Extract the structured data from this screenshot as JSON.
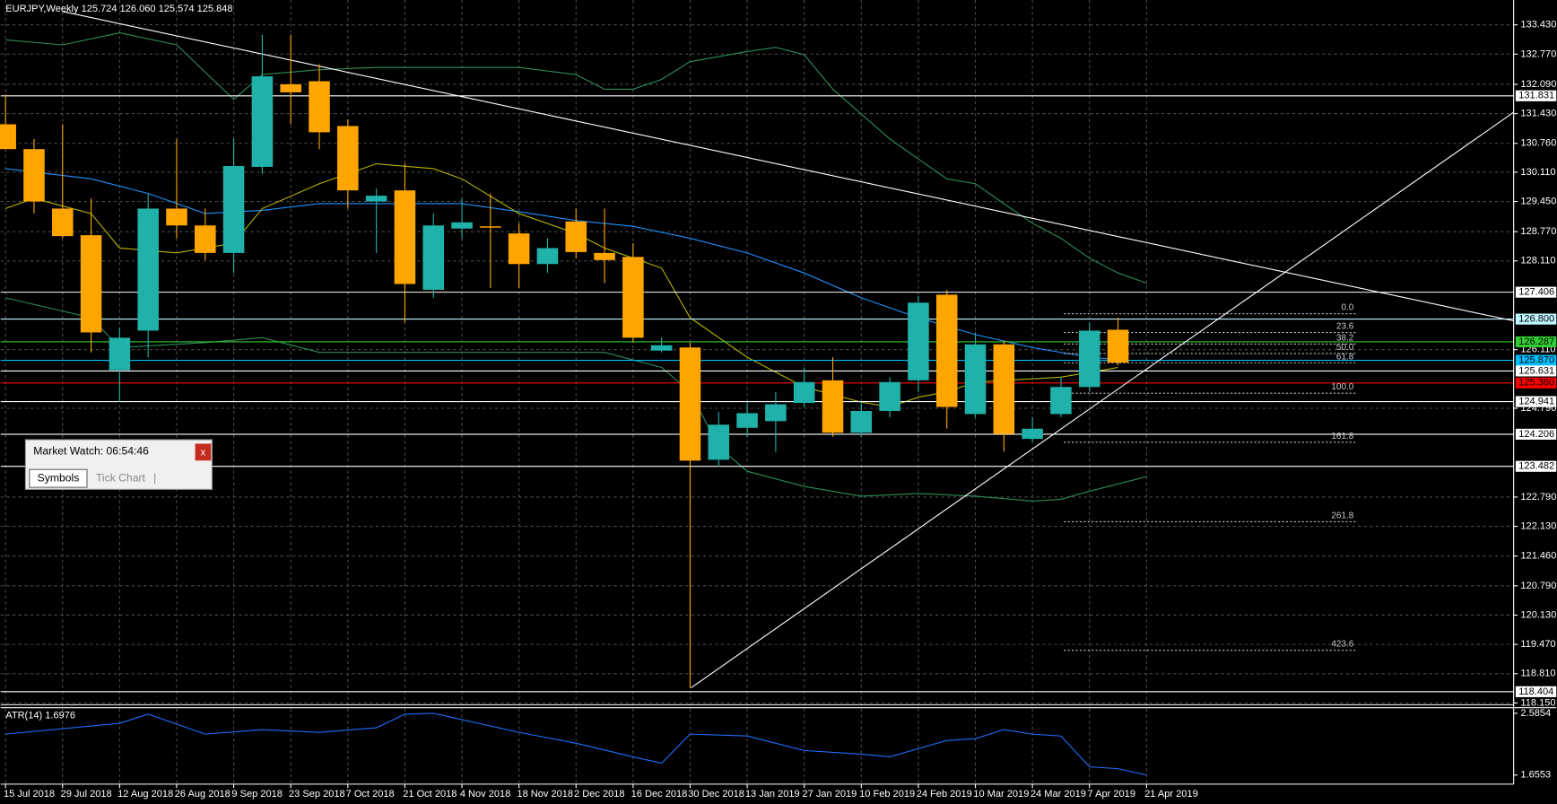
{
  "chart_data": [
    {
      "type": "candlestick",
      "title": "EURJPY,Weekly  125.724 126.060 125.574 125.848",
      "up_color": "#20b2aa",
      "down_color": "#ffa500",
      "xlim": [
        -0.17,
        52.87
      ],
      "ylim": [
        118.11,
        133.99
      ],
      "grid": true,
      "xticks": [
        {
          "value": 0,
          "label": "15 Jul 2018"
        },
        {
          "value": 2,
          "label": "29 Jul 2018"
        },
        {
          "value": 4,
          "label": "12 Aug 2018"
        },
        {
          "value": 6,
          "label": "26 Aug 2018"
        },
        {
          "value": 8,
          "label": "9 Sep 2018"
        },
        {
          "value": 10,
          "label": "23 Sep 2018"
        },
        {
          "value": 12,
          "label": "7 Oct 2018"
        },
        {
          "value": 14,
          "label": "21 Oct 2018"
        },
        {
          "value": 16,
          "label": "4 Nov 2018"
        },
        {
          "value": 18,
          "label": "18 Nov 2018"
        },
        {
          "value": 20,
          "label": "2 Dec 2018"
        },
        {
          "value": 22,
          "label": "16 Dec 2018"
        },
        {
          "value": 24,
          "label": "30 Dec 2018"
        },
        {
          "value": 26,
          "label": "13 Jan 2019"
        },
        {
          "value": 28,
          "label": "27 Jan 2019"
        },
        {
          "value": 30,
          "label": "10 Feb 2019"
        },
        {
          "value": 32,
          "label": "24 Feb 2019"
        },
        {
          "value": 34,
          "label": "10 Mar 2019"
        },
        {
          "value": 36,
          "label": "24 Mar 2019"
        },
        {
          "value": 38,
          "label": "7 Apr 2019"
        },
        {
          "value": 40,
          "label": "21 Apr 2019"
        }
      ],
      "yticks": [
        {
          "value": 133.43,
          "label": "133.430"
        },
        {
          "value": 132.77,
          "label": "132.770"
        },
        {
          "value": 132.09,
          "label": "132.090"
        },
        {
          "value": 131.43,
          "label": "131.430"
        },
        {
          "value": 130.76,
          "label": "130.760"
        },
        {
          "value": 130.11,
          "label": "130.110"
        },
        {
          "value": 129.45,
          "label": "129.450"
        },
        {
          "value": 128.77,
          "label": "128.770"
        },
        {
          "value": 128.11,
          "label": "128.110"
        },
        {
          "value": 126.11,
          "label": "126.110"
        },
        {
          "value": 124.79,
          "label": "124.790"
        },
        {
          "value": 122.79,
          "label": "122.790"
        },
        {
          "value": 122.13,
          "label": "122.130"
        },
        {
          "value": 121.46,
          "label": "121.460"
        },
        {
          "value": 120.79,
          "label": "120.790"
        },
        {
          "value": 120.13,
          "label": "120.130"
        },
        {
          "value": 119.47,
          "label": "119.470"
        },
        {
          "value": 118.81,
          "label": "118.810"
        },
        {
          "value": 118.15,
          "label": "118.150"
        }
      ],
      "ohlc": {
        "open": [
          131.19,
          130.63,
          129.29,
          128.69,
          125.65,
          126.54,
          129.29,
          128.91,
          128.29,
          130.23,
          132.09,
          132.16,
          131.15,
          129.45,
          129.7,
          127.46,
          128.84,
          128.89,
          128.73,
          128.04,
          129.0,
          128.29,
          128.2,
          126.09,
          126.16,
          123.63,
          124.35,
          124.5,
          124.91,
          125.42,
          124.24,
          124.73,
          125.42,
          127.35,
          124.66,
          126.23,
          124.1,
          124.66,
          125.27,
          126.56
        ],
        "high": [
          131.86,
          130.86,
          131.19,
          129.52,
          126.61,
          129.63,
          130.86,
          129.29,
          130.86,
          133.21,
          133.21,
          132.54,
          131.3,
          129.74,
          130.3,
          129.18,
          129.52,
          129.63,
          128.96,
          128.62,
          129.29,
          129.29,
          128.51,
          126.38,
          126.27,
          124.71,
          124.93,
          125.16,
          125.71,
          125.94,
          124.93,
          125.49,
          127.32,
          127.46,
          126.5,
          126.32,
          124.59,
          125.49,
          126.72,
          126.83
        ],
        "low": [
          130.63,
          129.18,
          128.62,
          126.05,
          124.93,
          125.94,
          128.62,
          128.13,
          127.84,
          130.07,
          131.19,
          130.63,
          129.29,
          128.29,
          126.72,
          127.28,
          128.62,
          127.5,
          127.5,
          127.84,
          128.17,
          127.61,
          126.27,
          126.05,
          118.49,
          123.48,
          124.15,
          123.81,
          124.82,
          124.15,
          124.15,
          124.59,
          125.16,
          124.33,
          124.59,
          123.81,
          124.03,
          124.59,
          125.16,
          125.76
        ],
        "close": [
          130.63,
          129.45,
          128.67,
          126.5,
          126.38,
          129.29,
          128.91,
          128.29,
          130.25,
          132.27,
          131.91,
          131.01,
          129.7,
          129.58,
          127.59,
          128.91,
          128.98,
          128.86,
          128.04,
          128.4,
          128.31,
          128.13,
          126.38,
          126.21,
          123.61,
          124.42,
          124.68,
          124.88,
          125.38,
          124.24,
          124.73,
          125.38,
          127.17,
          124.82,
          126.23,
          124.21,
          124.33,
          125.27,
          126.54,
          125.82
        ]
      },
      "lines": [
        {
          "color": "#2e8b57",
          "x": [
            0,
            2,
            4,
            6,
            8,
            9,
            11,
            13,
            16,
            18,
            20,
            21,
            22,
            23,
            24,
            26,
            27,
            28,
            29,
            31,
            32,
            33,
            34,
            35,
            36,
            37,
            38,
            39,
            40
          ],
          "values": [
            133.09,
            132.98,
            133.25,
            132.98,
            131.75,
            132.31,
            132.42,
            132.47,
            132.47,
            132.47,
            132.31,
            131.98,
            131.98,
            132.2,
            132.6,
            132.83,
            132.92,
            132.76,
            131.98,
            130.86,
            130.41,
            129.96,
            129.85,
            129.4,
            128.96,
            128.62,
            128.17,
            127.84,
            127.61
          ]
        },
        {
          "color": "#2e8b57",
          "x": [
            0,
            3,
            4,
            7,
            9,
            11,
            16,
            21,
            23,
            24,
            25,
            26,
            28,
            30,
            32,
            34,
            36,
            37,
            38,
            40
          ],
          "values": [
            127.28,
            126.83,
            126.16,
            126.27,
            126.38,
            126.05,
            126.05,
            126.05,
            125.71,
            125.16,
            123.92,
            123.37,
            123.03,
            122.81,
            122.87,
            122.81,
            122.7,
            122.74,
            122.92,
            123.25
          ]
        },
        {
          "color": "#1e90ff",
          "x": [
            0,
            3,
            5,
            7,
            9,
            11,
            13,
            16,
            18,
            20,
            22,
            24,
            26,
            28,
            30,
            32,
            34,
            36,
            38,
            39
          ],
          "values": [
            130.19,
            129.96,
            129.63,
            129.18,
            129.25,
            129.4,
            129.4,
            129.4,
            129.22,
            129.02,
            128.89,
            128.62,
            128.29,
            127.84,
            127.28,
            126.83,
            126.45,
            126.16,
            125.94,
            125.89
          ]
        },
        {
          "color": "#b5b500",
          "x": [
            0,
            1,
            3,
            4,
            6,
            8,
            9,
            11,
            13,
            15,
            16,
            18,
            20,
            21,
            23,
            24,
            26,
            28,
            30,
            31,
            32,
            33,
            34,
            37,
            38,
            39
          ],
          "values": [
            129.29,
            129.52,
            129.18,
            128.4,
            128.29,
            128.51,
            129.29,
            129.85,
            130.3,
            130.19,
            129.96,
            129.18,
            128.73,
            128.4,
            127.95,
            126.83,
            125.94,
            125.27,
            124.93,
            124.82,
            125.04,
            125.16,
            125.38,
            125.49,
            125.6,
            125.71
          ]
        }
      ],
      "levels": {
        "values": [
          131.831,
          127.406,
          126.8,
          126.287,
          125.87,
          125.631,
          125.36,
          124.941,
          124.206,
          123.482,
          118.404
        ],
        "value_labels": [
          "131.831",
          "127.406",
          "126.800",
          "126.287",
          "125.870",
          "125.631",
          "125.360",
          "124.941",
          "124.206",
          "123.482",
          "118.404"
        ],
        "colors": [
          "#ffffff",
          "#ffffff",
          "#bff6ff",
          "#32cd32",
          "#00bfff",
          "#ffffff",
          "#ff0000",
          "#ffffff",
          "#ffffff",
          "#ffffff",
          "#ffffff"
        ]
      },
      "trendlines": [
        {
          "x": [
            2,
            52.87
          ],
          "y": [
            133.73,
            126.76
          ]
        },
        {
          "x": [
            24.03,
            52.87
          ],
          "y": [
            118.49,
            131.46
          ]
        }
      ],
      "fibonacci": {
        "high": 126.92,
        "low": 125.13,
        "x": [
          37.1,
          47.4
        ],
        "levels": {
          "values": [
            0,
            23.6,
            38.2,
            50,
            61.8,
            100,
            161.8,
            261.8,
            423.6
          ],
          "value_labels": [
            "0.0",
            "23.6",
            "38.2",
            "50.0",
            "61.8",
            "100.0",
            "161.8",
            "261.8",
            "423.6"
          ]
        }
      }
    },
    {
      "type": "line",
      "title": "ATR(14) 1.6976",
      "color": "#1e6fff",
      "ylim": [
        1.518,
        2.654
      ],
      "yticks": [
        2.5854,
        1.6553
      ],
      "x": [
        0,
        4,
        5,
        7,
        9,
        11,
        13,
        14,
        15,
        18,
        20,
        22,
        23,
        24,
        26,
        28,
        30,
        31,
        33,
        34,
        35,
        36,
        37,
        38,
        39,
        40
      ],
      "values": [
        2.271,
        2.435,
        2.572,
        2.271,
        2.339,
        2.298,
        2.367,
        2.572,
        2.585,
        2.298,
        2.134,
        1.929,
        1.833,
        2.271,
        2.243,
        2.025,
        1.97,
        1.929,
        2.175,
        2.202,
        2.339,
        2.271,
        2.243,
        1.778,
        1.751,
        1.655
      ]
    }
  ],
  "market_watch": {
    "title": "Market Watch: 06:54:46",
    "close": "x",
    "tabs": [
      "Symbols",
      "Tick Chart"
    ],
    "separator": "|"
  }
}
